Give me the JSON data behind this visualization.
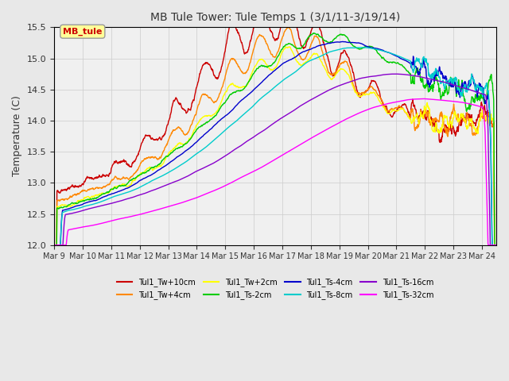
{
  "title": "MB Tule Tower: Tule Temps 1 (3/1/11-3/19/14)",
  "ylabel": "Temperature (C)",
  "ylim": [
    12.0,
    15.5
  ],
  "yticks": [
    12.0,
    12.5,
    13.0,
    13.5,
    14.0,
    14.5,
    15.0,
    15.5
  ],
  "xlim": [
    0,
    15.5
  ],
  "x_tick_positions": [
    0,
    1,
    2,
    3,
    4,
    5,
    6,
    7,
    8,
    9,
    10,
    11,
    12,
    13,
    14,
    15
  ],
  "x_tick_labels": [
    "Mar 9",
    "Mar 10",
    "Mar 11",
    "Mar 12",
    "Mar 13",
    "Mar 14",
    "Mar 15",
    "Mar 16",
    "Mar 17",
    "Mar 18",
    "Mar 19",
    "Mar 20",
    "Mar 21",
    "Mar 22",
    "Mar 23",
    "Mar 24"
  ],
  "series": [
    {
      "label": "Tul1_Tw+10cm",
      "color": "#cc0000"
    },
    {
      "label": "Tul1_Tw+4cm",
      "color": "#ff8800"
    },
    {
      "label": "Tul1_Tw+2cm",
      "color": "#ffff00"
    },
    {
      "label": "Tul1_Ts-2cm",
      "color": "#00cc00"
    },
    {
      "label": "Tul1_Ts-4cm",
      "color": "#0000cc"
    },
    {
      "label": "Tul1_Ts-8cm",
      "color": "#00cccc"
    },
    {
      "label": "Tul1_Ts-16cm",
      "color": "#8800cc"
    },
    {
      "label": "Tul1_Ts-32cm",
      "color": "#ff00ff"
    }
  ],
  "legend_box_color": "#ffff99",
  "legend_box_label": "MB_tule",
  "legend_box_text_color": "#cc0000",
  "background_color": "#e8e8e8",
  "plot_bg_color": "#f0f0f0"
}
